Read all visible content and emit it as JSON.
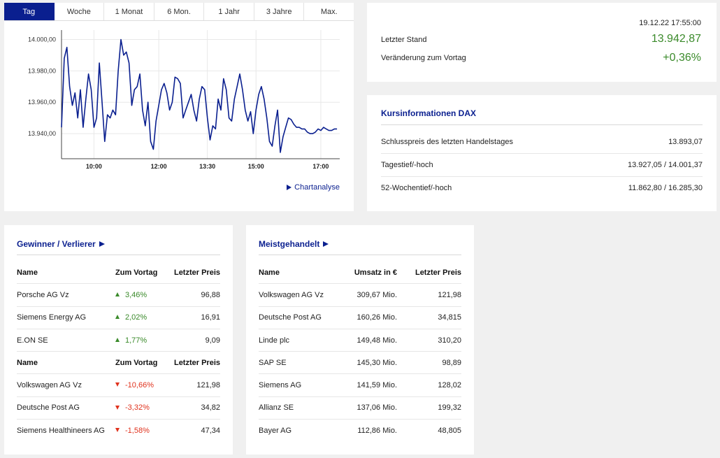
{
  "chart": {
    "tabs": [
      "Tag",
      "Woche",
      "1 Monat",
      "6 Mon.",
      "1 Jahr",
      "3 Jahre",
      "Max."
    ],
    "active_tab": "Tag",
    "link_label": "Chartanalyse",
    "colors": {
      "line": "#0a1f8f",
      "grid": "#e8e8e8"
    }
  },
  "chart_data": {
    "type": "line",
    "x_ticks": [
      "10:00",
      "12:00",
      "13:30",
      "15:00",
      "17:00"
    ],
    "y_ticks": [
      "14.000,00",
      "13.980,00",
      "13.960,00",
      "13.940,00"
    ],
    "ylim": [
      13924,
      14006
    ],
    "xlim": [
      "09:00",
      "17:35"
    ],
    "series": [
      {
        "x": [
          "09:00",
          "09:05",
          "09:10",
          "09:15",
          "09:20",
          "09:25",
          "09:30",
          "09:35",
          "09:40",
          "09:45",
          "09:50",
          "09:55",
          "10:00",
          "10:05",
          "10:10",
          "10:15",
          "10:20",
          "10:25",
          "10:30",
          "10:35",
          "10:40",
          "10:45",
          "10:50",
          "10:55",
          "11:00",
          "11:05",
          "11:10",
          "11:15",
          "11:20",
          "11:25",
          "11:30",
          "11:35",
          "11:40",
          "11:45",
          "11:50",
          "11:55",
          "12:00",
          "12:05",
          "12:10",
          "12:15",
          "12:20",
          "12:25",
          "12:30",
          "12:35",
          "12:40",
          "12:45",
          "12:50",
          "12:55",
          "13:00",
          "13:05",
          "13:10",
          "13:15",
          "13:20",
          "13:25",
          "13:30",
          "13:35",
          "13:40",
          "13:45",
          "13:50",
          "13:55",
          "14:00",
          "14:05",
          "14:10",
          "14:15",
          "14:20",
          "14:25",
          "14:30",
          "14:35",
          "14:40",
          "14:45",
          "14:50",
          "14:55",
          "15:00",
          "15:05",
          "15:10",
          "15:15",
          "15:20",
          "15:25",
          "15:30",
          "15:35",
          "15:40",
          "15:45",
          "15:50",
          "15:55",
          "16:00",
          "16:05",
          "16:10",
          "16:15",
          "16:20",
          "16:25",
          "16:30",
          "16:35",
          "16:40",
          "16:45",
          "16:50",
          "16:55",
          "17:00",
          "17:05",
          "17:10",
          "17:15",
          "17:20",
          "17:25",
          "17:30"
        ],
        "values": [
          13944,
          13988,
          13995,
          13970,
          13958,
          13966,
          13950,
          13968,
          13944,
          13962,
          13978,
          13968,
          13944,
          13950,
          13985,
          13960,
          13935,
          13952,
          13950,
          13955,
          13952,
          13980,
          14000,
          13990,
          13992,
          13985,
          13958,
          13968,
          13970,
          13978,
          13955,
          13945,
          13960,
          13935,
          13930,
          13948,
          13958,
          13968,
          13972,
          13966,
          13955,
          13960,
          13976,
          13975,
          13972,
          13950,
          13955,
          13960,
          13965,
          13955,
          13948,
          13962,
          13970,
          13968,
          13950,
          13936,
          13945,
          13943,
          13962,
          13955,
          13975,
          13968,
          13950,
          13948,
          13962,
          13970,
          13978,
          13968,
          13955,
          13948,
          13954,
          13940,
          13955,
          13965,
          13970,
          13962,
          13950,
          13935,
          13932,
          13945,
          13955,
          13928,
          13938,
          13944,
          13950,
          13949,
          13946,
          13944,
          13944,
          13943,
          13943,
          13941,
          13940,
          13940,
          13941,
          13943,
          13942,
          13944,
          13943,
          13942,
          13942,
          13943,
          13943
        ]
      }
    ]
  },
  "quote": {
    "timestamp": "19.12.22 17:55:00",
    "last_label": "Letzter Stand",
    "last_value": "13.942,87",
    "change_label": "Veränderung zum Vortag",
    "change_value": "+0,36%"
  },
  "info": {
    "title": "Kursinformationen DAX",
    "rows": [
      {
        "label": "Schlusspreis des letzten Handelstages",
        "value": "13.893,07"
      },
      {
        "label": "Tagestief/-hoch",
        "value": "13.927,05 / 14.001,37"
      },
      {
        "label": "52-Wochentief/-hoch",
        "value": "11.862,80 / 16.285,30"
      }
    ]
  },
  "winners": {
    "title": "Gewinner / Verlierer",
    "head": {
      "name": "Name",
      "chg": "Zum Vortag",
      "price": "Letzter Preis"
    },
    "up": [
      {
        "name": "Porsche AG Vz",
        "chg": "3,46%",
        "price": "96,88"
      },
      {
        "name": "Siemens Energy AG",
        "chg": "2,02%",
        "price": "16,91"
      },
      {
        "name": "E.ON SE",
        "chg": "1,77%",
        "price": "9,09"
      }
    ],
    "down": [
      {
        "name": "Volkswagen AG Vz",
        "chg": "-10,66%",
        "price": "121,98"
      },
      {
        "name": "Deutsche Post AG",
        "chg": "-3,32%",
        "price": "34,82"
      },
      {
        "name": "Siemens Healthineers AG",
        "chg": "-1,58%",
        "price": "47,34"
      }
    ]
  },
  "most": {
    "title": "Meistgehandelt",
    "head": {
      "name": "Name",
      "ums": "Umsatz in €",
      "price": "Letzter Preis"
    },
    "rows": [
      {
        "name": "Volkswagen AG Vz",
        "ums": "309,67 Mio.",
        "price": "121,98"
      },
      {
        "name": "Deutsche Post AG",
        "ums": "160,26 Mio.",
        "price": "34,815"
      },
      {
        "name": "Linde plc",
        "ums": "149,48 Mio.",
        "price": "310,20"
      },
      {
        "name": "SAP SE",
        "ums": "145,30 Mio.",
        "price": "98,89"
      },
      {
        "name": "Siemens AG",
        "ums": "141,59 Mio.",
        "price": "128,02"
      },
      {
        "name": "Allianz SE",
        "ums": "137,06 Mio.",
        "price": "199,32"
      },
      {
        "name": "Bayer AG",
        "ums": "112,86 Mio.",
        "price": "48,805"
      }
    ]
  }
}
